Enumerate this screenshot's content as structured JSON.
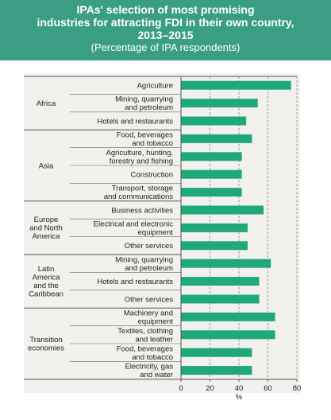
{
  "header": {
    "title_line1": "IPAs' selection of most promising",
    "title_line2": "industries for attracting FDI in their own country,",
    "title_line3": "2013–2015",
    "subtitle": "(Percentage of IPA respondents)"
  },
  "colors": {
    "header_bg": "#3a9e84",
    "bar": "#1fa87a",
    "panel_bg": "#f2f1ee"
  },
  "chart_data": {
    "type": "bar",
    "orientation": "horizontal",
    "xlabel": "%",
    "xlim": [
      0,
      80
    ],
    "xticks": [
      0,
      20,
      40,
      60,
      80
    ],
    "grid": "vertical dashed",
    "groups": [
      {
        "name": "Africa",
        "label_lines": [
          "Africa"
        ],
        "bars": [
          {
            "label": "Agriculture",
            "lines": [
              "Agriculture"
            ],
            "value": 76
          },
          {
            "label": "Mining, quarrying and petroleum",
            "lines": [
              "Mining, quarrying",
              "and petroleum"
            ],
            "value": 53
          },
          {
            "label": "Hotels and restaurants",
            "lines": [
              "Hotels and restaurants"
            ],
            "value": 45
          }
        ]
      },
      {
        "name": "Asia",
        "label_lines": [
          "Asia"
        ],
        "bars": [
          {
            "label": "Food, beverages and tobacco",
            "lines": [
              "Food, beverages",
              "and tobacco"
            ],
            "value": 49
          },
          {
            "label": "Agriculture, hunting, forestry and fishing",
            "lines": [
              "Agriculture, hunting,",
              "forestry and fishing"
            ],
            "value": 42
          },
          {
            "label": "Construction",
            "lines": [
              "Construction"
            ],
            "value": 42
          },
          {
            "label": "Transport, storage and communications",
            "lines": [
              "Transport, storage",
              "and communications"
            ],
            "value": 42
          }
        ]
      },
      {
        "name": "Europe and North America",
        "label_lines": [
          "Europe",
          "and North",
          "America"
        ],
        "bars": [
          {
            "label": "Business activities",
            "lines": [
              "Business activities"
            ],
            "value": 57
          },
          {
            "label": "Electrical and electronic equipment",
            "lines": [
              "Electrical and electronic",
              "equipment"
            ],
            "value": 46
          },
          {
            "label": "Other services",
            "lines": [
              "Other services"
            ],
            "value": 46
          }
        ]
      },
      {
        "name": "Latin America and the Caribbean",
        "label_lines": [
          "Latin",
          "America",
          "and the",
          "Caribbean"
        ],
        "bars": [
          {
            "label": "Mining, quarrying and petroleum",
            "lines": [
              "Mining, quarrying",
              "and petroleum"
            ],
            "value": 62
          },
          {
            "label": "Hotels and restaurants",
            "lines": [
              "Hotels and restaurants"
            ],
            "value": 54
          },
          {
            "label": "Other services",
            "lines": [
              "Other services"
            ],
            "value": 54
          }
        ]
      },
      {
        "name": "Transition economies",
        "label_lines": [
          "Transition",
          "economies"
        ],
        "bars": [
          {
            "label": "Machinery and equipment",
            "lines": [
              "Machinery and",
              "equipment"
            ],
            "value": 65
          },
          {
            "label": "Textiles, clothing and leather",
            "lines": [
              "Textiles, clothing",
              "and leather"
            ],
            "value": 65
          },
          {
            "label": "Food, beverages and tobacco",
            "lines": [
              "Food, beverages",
              "and tobacco"
            ],
            "value": 49
          },
          {
            "label": "Electricity, gas and water",
            "lines": [
              "Electricity, gas",
              "and water"
            ],
            "value": 49
          }
        ]
      }
    ]
  }
}
